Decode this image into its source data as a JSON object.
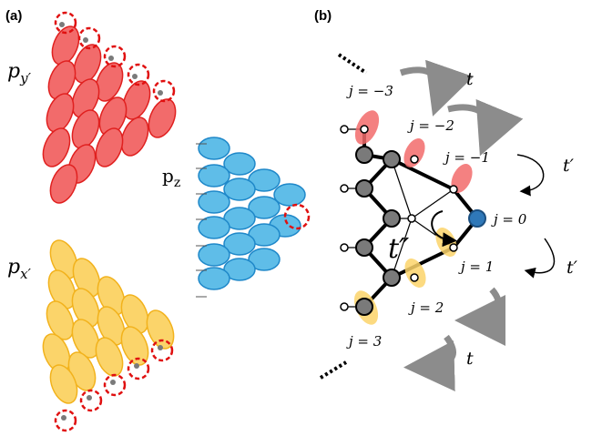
{
  "panels": {
    "a": "(a)",
    "b": "(b)"
  },
  "orbitals": {
    "py": {
      "label": "p",
      "sub": "y′"
    },
    "pz": {
      "label": "p",
      "sub": "z"
    },
    "px": {
      "label": "p",
      "sub": "x′"
    }
  },
  "colors": {
    "red_fill": "#f26b6b",
    "red_edge": "#e0201f",
    "blue_fill": "#5fbde8",
    "blue_edge": "#1f88c9",
    "yellow_fill": "#fbd46a",
    "yellow_edge": "#f2b21c",
    "dashed_ring": "#e01010",
    "site_grey": "#7a7a7a",
    "arrow_grey": "#8c8c8c",
    "center_site": "#2f78b8"
  },
  "chain": {
    "sites": [
      "j = −3",
      "j = −2",
      "j = −1",
      "j = 0",
      "j = 1",
      "j = 2",
      "j = 3"
    ],
    "hoppings": {
      "t": "t",
      "t_prime": "t′",
      "t_double_prime": "t″"
    }
  }
}
